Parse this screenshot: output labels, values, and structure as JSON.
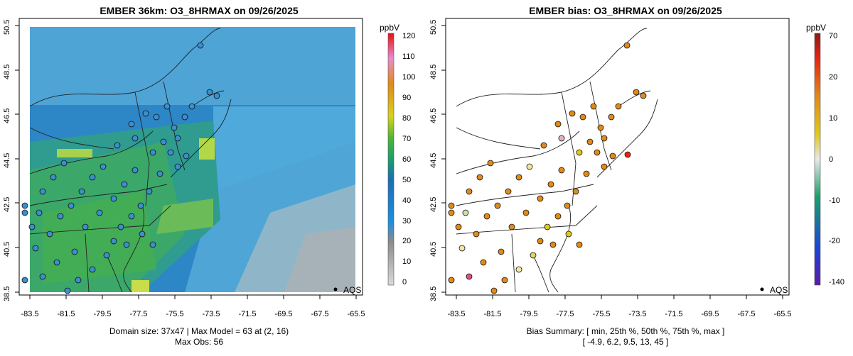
{
  "panels": [
    {
      "title": "EMBER 36km: O3_8HRMAX on 09/26/2025",
      "colorbar_unit": "ppbV",
      "colorbar_ticks": [
        "0",
        "10",
        "20",
        "30",
        "40",
        "50",
        "60",
        "70",
        "80",
        "90",
        "100",
        "110",
        "120"
      ],
      "footer_line1": "Domain size: 37x47 | Max Model = 63 at (2, 16)",
      "footer_line2": "Max Obs: 56",
      "legend_label": "AQS"
    },
    {
      "title": "EMBER bias: O3_8HRMAX on 09/26/2025",
      "colorbar_unit": "ppbV",
      "colorbar_ticks": [
        "-140",
        "-20",
        "-10",
        "0",
        "10",
        "20",
        "70"
      ],
      "footer_line1": "Bias Summary: [ min, 25th %, 50th %, 75th %, max ]",
      "footer_line2": "[ -4.9,   6.2,   9.5,   13,   45 ]",
      "legend_label": "AQS"
    }
  ],
  "axes": {
    "x_ticks": [
      "-83.5",
      "-81.5",
      "-79.5",
      "-77.5",
      "-75.5",
      "-73.5",
      "-71.5",
      "-69.5",
      "-67.5",
      "-65.5"
    ],
    "y_ticks": [
      "38.5",
      "40.5",
      "42.5",
      "44.5",
      "46.5",
      "48.5",
      "50.5"
    ]
  },
  "colors": {
    "model_land_low": "#2f8fd0",
    "model_land_high": "#3fae4f",
    "model_peak": "#b7d84a",
    "model_ocean": "#59b8e6",
    "model_ocean_far": "#9fb9c9",
    "obs_marker": "#3a8fcf",
    "bias_marker": "#e08a1a",
    "bias_high": "#e8240f"
  }
}
